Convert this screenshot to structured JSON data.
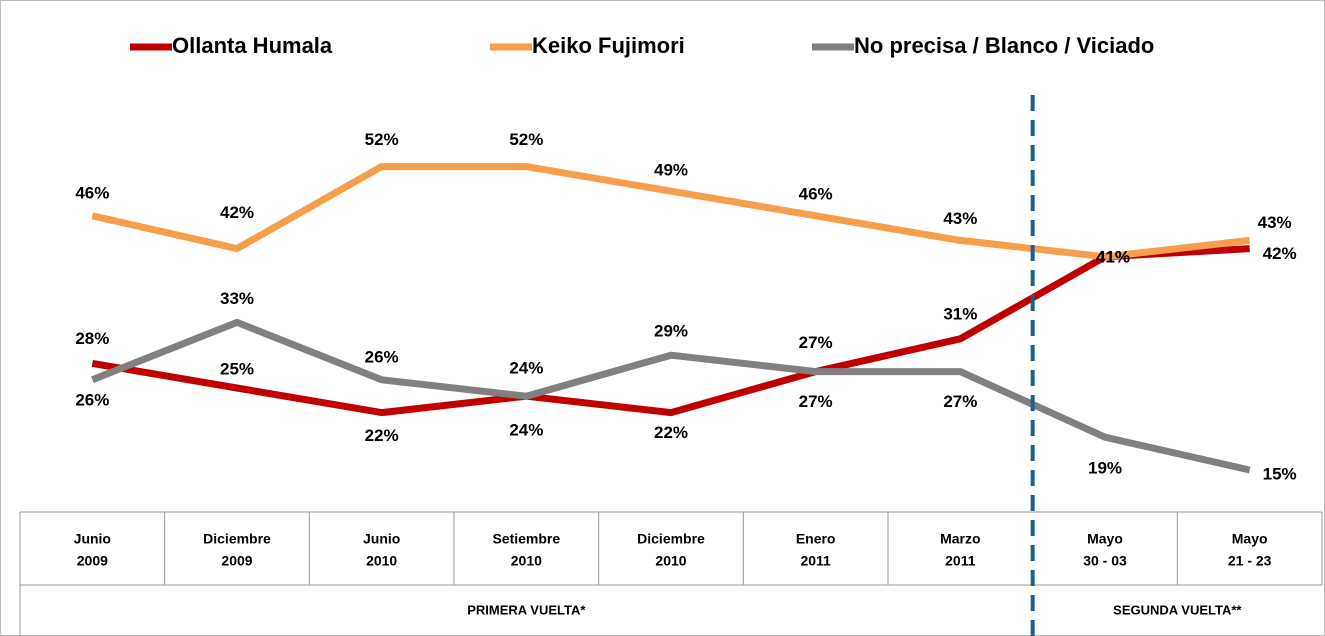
{
  "chart_data": {
    "type": "line",
    "categories": [
      [
        "Junio",
        "2009"
      ],
      [
        "Diciembre",
        "2009"
      ],
      [
        "Junio",
        "2010"
      ],
      [
        "Setiembre",
        "2010"
      ],
      [
        "Diciembre",
        "2010"
      ],
      [
        "Enero",
        "2011"
      ],
      [
        "Marzo",
        "2011"
      ],
      [
        "Mayo",
        "30 - 03"
      ],
      [
        "Mayo",
        "21 - 23"
      ]
    ],
    "groups": [
      "PRIMERA VUELTA*",
      "SEGUNDA VUELTA**"
    ],
    "ylim": [
      10,
      60
    ],
    "series": [
      {
        "name": "Ollanta Humala",
        "color": "#c00000",
        "values": [
          28,
          25,
          22,
          24,
          22,
          27,
          31,
          41,
          42
        ],
        "value_labels": [
          "28%",
          "25%",
          "22%",
          "24%",
          "22%",
          "27%",
          "31%",
          "41%",
          "42%"
        ]
      },
      {
        "name": "Keiko Fujimori",
        "color": "#f79e4c",
        "values": [
          46,
          42,
          52,
          52,
          49,
          46,
          43,
          41,
          43
        ],
        "value_labels": [
          "46%",
          "42%",
          "52%",
          "52%",
          "49%",
          "46%",
          "43%",
          "41%",
          "43%"
        ]
      },
      {
        "name": "No precisa / Blanco / Viciado",
        "color": "#808080",
        "values": [
          26,
          33,
          26,
          24,
          29,
          27,
          27,
          19,
          15
        ],
        "value_labels": [
          "26%",
          "33%",
          "26%",
          "24%",
          "29%",
          "27%",
          "27%",
          "19%",
          "15%"
        ]
      }
    ]
  }
}
